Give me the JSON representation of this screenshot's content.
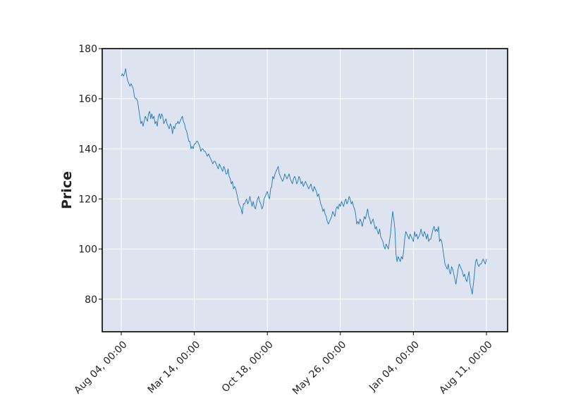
{
  "chart_data": {
    "type": "line",
    "title": "",
    "xlabel": "",
    "ylabel": "Price",
    "x_tick_labels": [
      "Aug 04, 00:00",
      "Mar 14, 00:00",
      "Oct 18, 00:00",
      "May 26, 00:00",
      "Jan 04, 00:00",
      "Aug 11, 00:00"
    ],
    "y_ticks": [
      80,
      100,
      120,
      140,
      160,
      180
    ],
    "ylim": [
      67,
      180
    ],
    "grid": true,
    "legend": "none",
    "colors": {
      "plot_background": "#dde3ef",
      "grid": "#ffffff",
      "line": "#1f77b4",
      "frame": "#000000"
    },
    "series": [
      {
        "values": [
          169,
          170,
          169,
          170,
          172,
          169,
          167,
          166,
          165,
          166,
          165,
          164,
          161,
          160,
          160,
          159,
          156,
          153,
          150,
          151,
          149,
          151,
          153,
          152,
          151,
          154,
          155,
          152,
          154,
          152,
          153,
          150,
          151,
          149,
          153,
          154,
          152,
          154,
          153,
          150,
          151,
          152,
          150,
          149,
          148,
          150,
          149,
          146,
          149,
          148,
          150,
          150,
          151,
          150,
          151,
          152,
          153,
          151,
          150,
          148,
          147,
          145,
          143,
          143,
          140,
          141,
          140,
          142,
          142,
          143,
          143,
          142,
          141,
          139,
          140,
          140,
          139,
          139,
          138,
          137,
          138,
          137,
          136,
          135,
          134,
          135,
          135,
          134,
          133,
          132,
          134,
          133,
          132,
          131,
          133,
          132,
          130,
          130,
          132,
          129,
          128,
          126,
          127,
          124,
          125,
          124,
          122,
          120,
          118,
          117,
          116,
          114,
          118,
          118,
          119,
          120,
          118,
          119,
          121,
          119,
          117,
          119,
          117,
          116,
          118,
          120,
          121,
          119,
          118,
          116,
          117,
          120,
          121,
          122,
          123,
          121,
          120,
          124,
          125,
          129,
          128,
          130,
          131,
          132,
          133,
          130,
          129,
          128,
          127,
          128,
          130,
          129,
          128,
          129,
          130,
          128,
          127,
          126,
          128,
          129,
          128,
          126,
          127,
          129,
          128,
          126,
          127,
          125,
          126,
          127,
          126,
          125,
          124,
          125,
          126,
          124,
          123,
          125,
          124,
          123,
          121,
          122,
          120,
          118,
          117,
          115,
          116,
          114,
          113,
          111,
          110,
          111,
          112,
          113,
          115,
          114,
          113,
          116,
          117,
          116,
          118,
          117,
          119,
          118,
          117,
          119,
          120,
          118,
          119,
          121,
          120,
          118,
          119,
          117,
          116,
          114,
          110,
          111,
          110,
          112,
          111,
          109,
          111,
          113,
          112,
          114,
          116,
          113,
          112,
          110,
          111,
          112,
          110,
          108,
          109,
          107,
          106,
          108,
          105,
          104,
          103,
          101,
          100,
          102,
          101,
          100,
          103,
          106,
          111,
          115,
          112,
          108,
          98,
          95,
          97,
          96,
          95,
          97,
          96,
          99,
          104,
          107,
          106,
          105,
          104,
          106,
          105,
          104,
          103,
          107,
          105,
          106,
          104,
          105,
          106,
          108,
          106,
          105,
          107,
          106,
          104,
          106,
          103,
          104,
          104,
          106,
          108,
          109,
          107,
          108,
          107,
          109,
          103,
          104,
          103,
          100,
          97,
          94,
          93,
          92,
          94,
          91,
          90,
          93,
          92,
          90,
          88,
          86,
          89,
          92,
          94,
          93,
          92,
          91,
          89,
          90,
          88,
          87,
          89,
          91,
          86,
          84,
          82,
          86,
          90,
          95,
          96,
          94,
          93,
          94,
          94,
          95,
          96,
          95,
          94,
          96
        ]
      }
    ]
  }
}
